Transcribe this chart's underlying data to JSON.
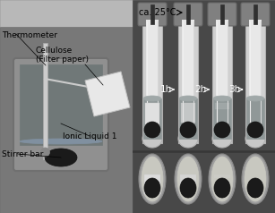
{
  "figsize": [
    3.07,
    2.38
  ],
  "dpi": 100,
  "bg_color": "#606060",
  "left_bg": "#787878",
  "right_bg": "#505050",
  "beaker_fill": "#909090",
  "beaker_liquid": "#808888",
  "stopper_color": "#888888",
  "tube_color": "#d0d0d0",
  "tube_wall": "#b8b8b8",
  "tube_inner": "#e8e8e8",
  "stirrer_color": "#1a1a1a",
  "paper_color": "#e8e8e8",
  "liquid_color": "#909898",
  "bottom_bg": "#c0c0c0",
  "white": "#ffffff",
  "label_color": "#000000",
  "time_labels": [
    "1h",
    "2h",
    "3h"
  ],
  "arrow_color": "#ffffff",
  "note_text": "ca. 25°C",
  "ann_texts": [
    "Thermometer",
    "Cellulose",
    "(Filter paper)",
    "Ionic Liquid 1",
    "Stirrer bar"
  ]
}
